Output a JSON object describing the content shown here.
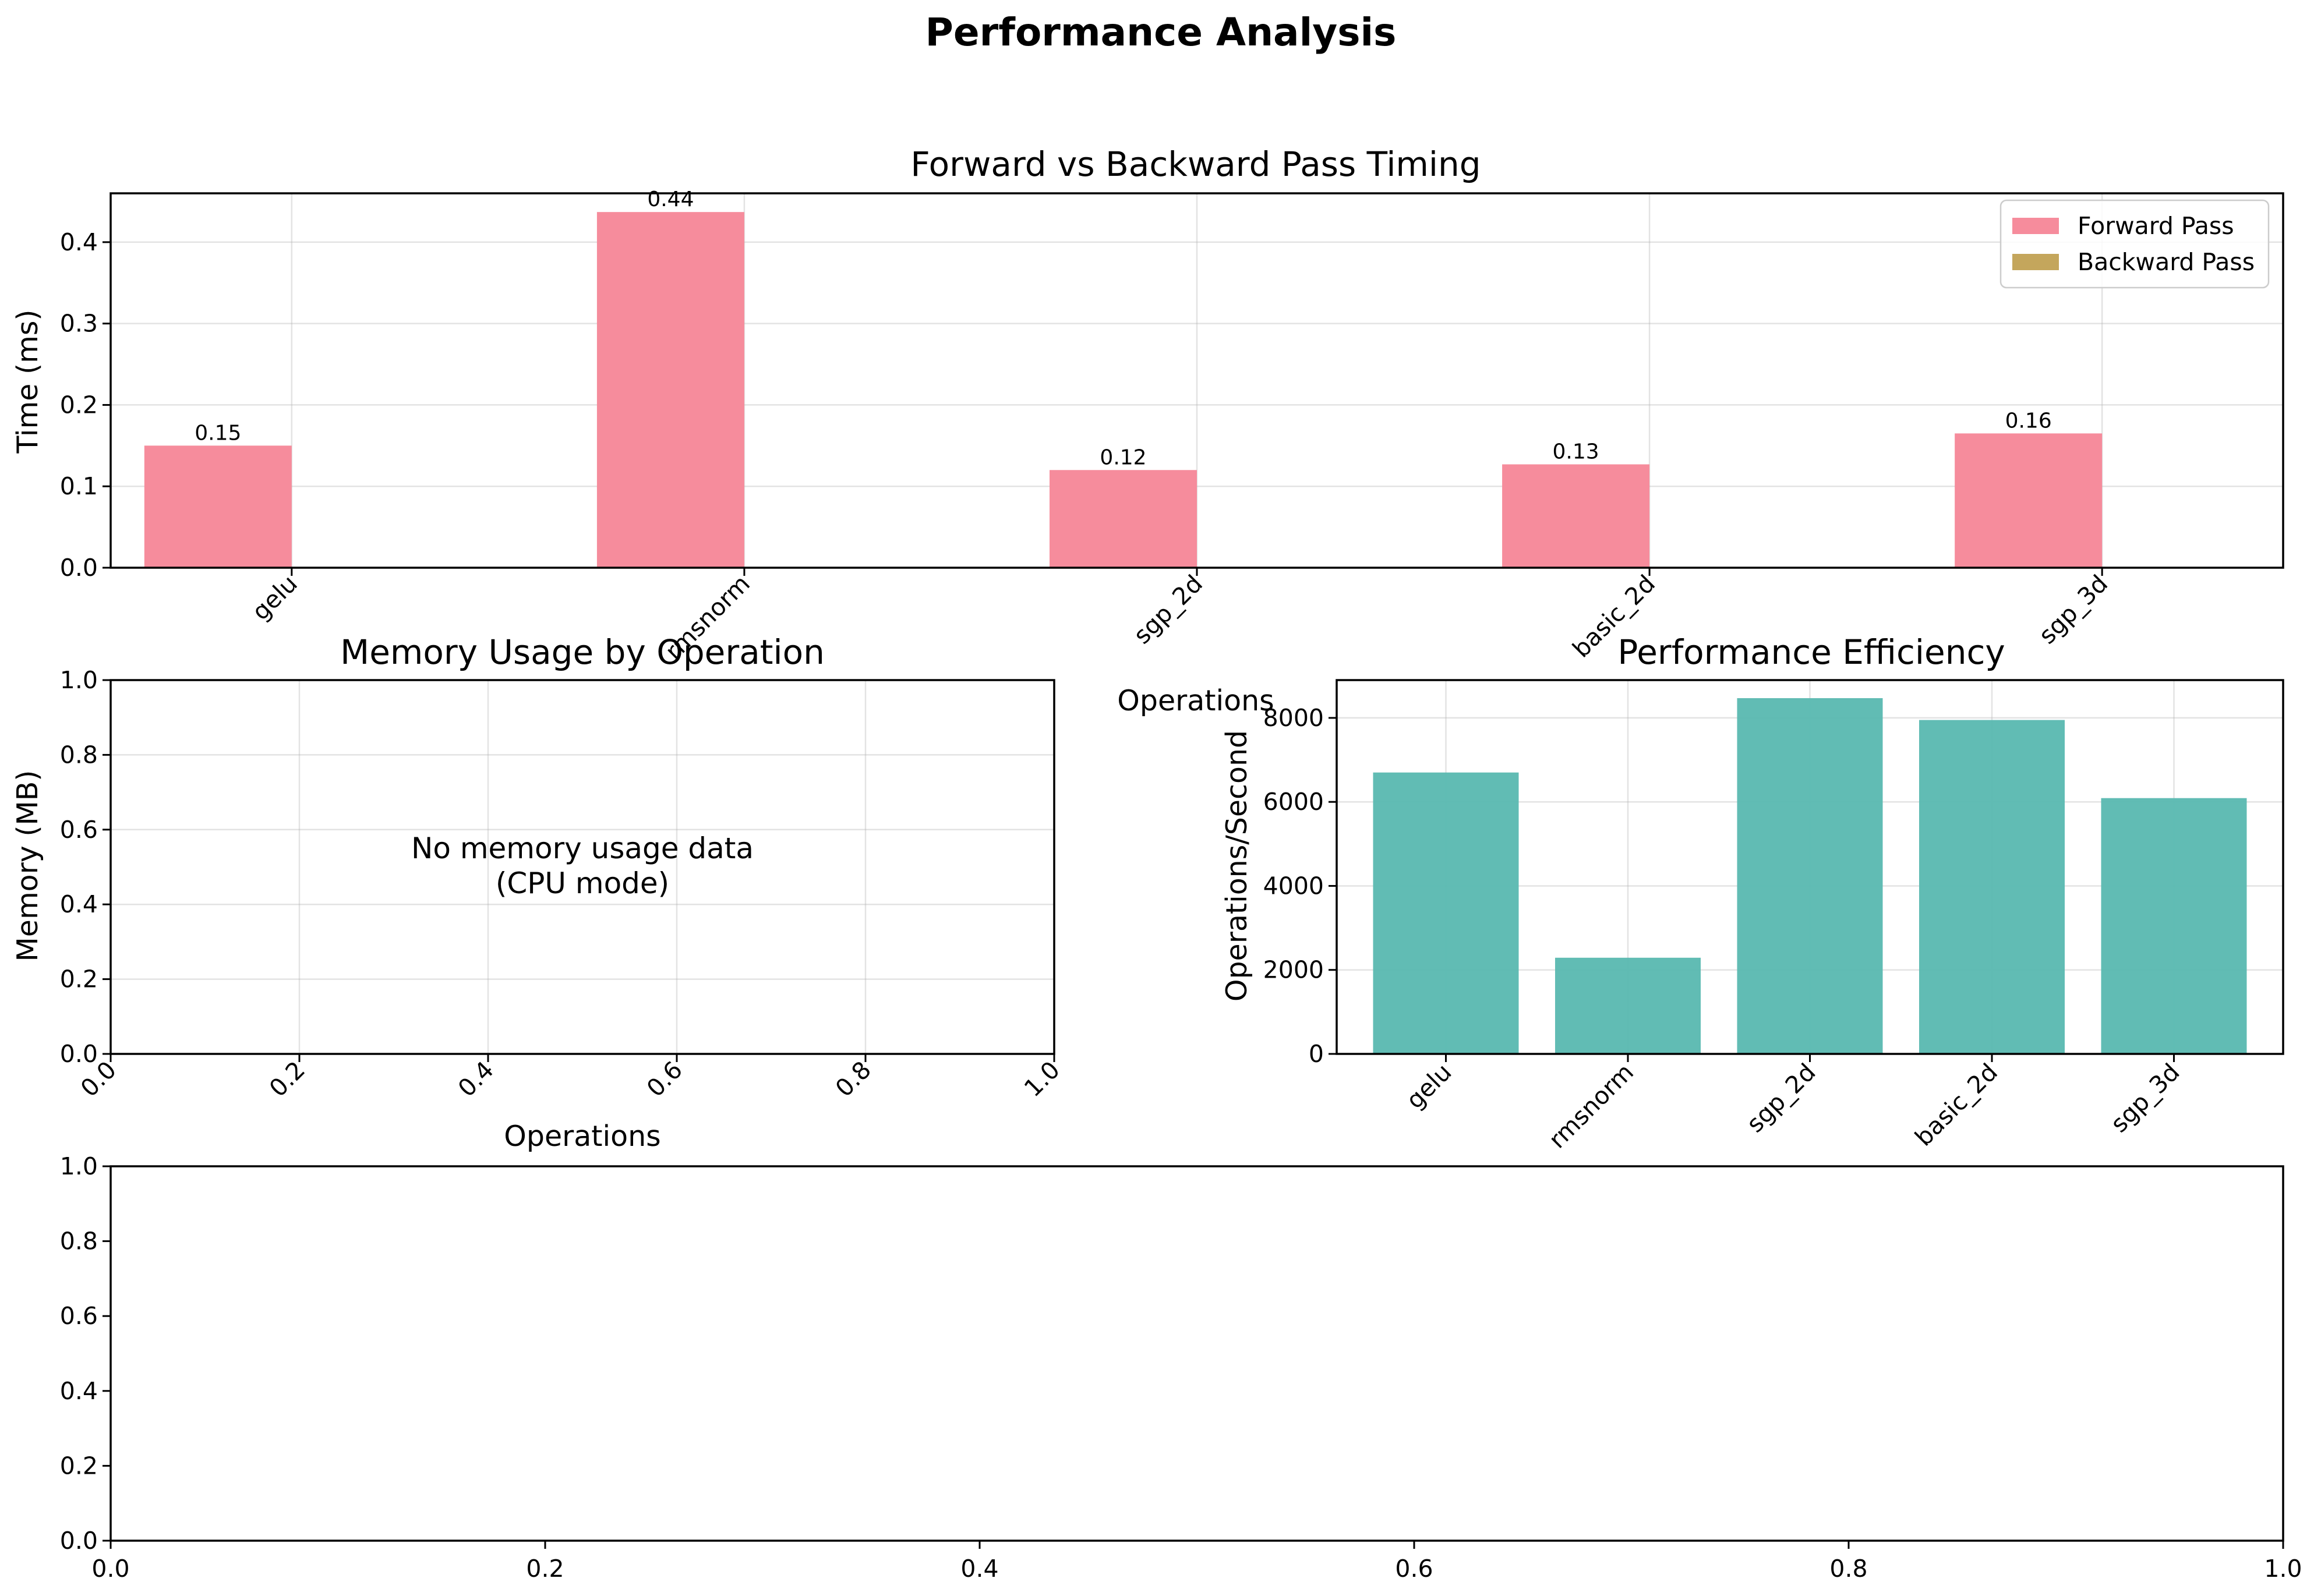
{
  "figure": {
    "title": "Performance Analysis"
  },
  "chart_data": [
    {
      "id": "timing",
      "type": "bar",
      "title": "Forward vs Backward Pass Timing",
      "xlabel": "Operations",
      "ylabel": "Time (ms)",
      "categories": [
        "gelu",
        "rmsnorm",
        "sgp_2d",
        "basic_2d",
        "sgp_3d"
      ],
      "series": [
        {
          "name": "Forward Pass",
          "values": [
            0.15,
            0.437,
            0.12,
            0.127,
            0.165
          ],
          "labels": [
            "0.15",
            "0.44",
            "0.12",
            "0.13",
            "0.16"
          ],
          "color": "#f68c9c"
        },
        {
          "name": "Backward Pass",
          "values": [
            0,
            0,
            0,
            0,
            0
          ],
          "color": "#c4a65c"
        }
      ],
      "ylim": [
        0,
        0.46
      ],
      "yticks": [
        "0.0",
        "0.1",
        "0.2",
        "0.3",
        "0.4"
      ],
      "grid": true,
      "legend": "top-right"
    },
    {
      "id": "memory",
      "type": "bar",
      "title": "Memory Usage by Operation",
      "xlabel": "Operations",
      "ylabel": "Memory (MB)",
      "message_lines": [
        "No memory usage data",
        "(CPU mode)"
      ],
      "xlim": [
        0,
        1
      ],
      "ylim": [
        0,
        1
      ],
      "xticks": [
        "0.0",
        "0.2",
        "0.4",
        "0.6",
        "0.8",
        "1.0"
      ],
      "yticks": [
        "0.0",
        "0.2",
        "0.4",
        "0.6",
        "0.8",
        "1.0"
      ],
      "grid": true
    },
    {
      "id": "efficiency",
      "type": "bar",
      "title": "Performance Efficiency",
      "xlabel": "",
      "ylabel": "Operations/Second",
      "categories": [
        "gelu",
        "rmsnorm",
        "sgp_2d",
        "basic_2d",
        "sgp_3d"
      ],
      "values": [
        6700,
        2290,
        8470,
        7950,
        6090
      ],
      "color": "#5cbab2",
      "ylim": [
        0,
        8900
      ],
      "yticks": [
        "0",
        "2000",
        "4000",
        "6000",
        "8000"
      ],
      "grid": true
    },
    {
      "id": "empty",
      "type": "bar",
      "xlim": [
        0,
        1
      ],
      "ylim": [
        0,
        1
      ],
      "xticks": [
        "0.0",
        "0.2",
        "0.4",
        "0.6",
        "0.8",
        "1.0"
      ],
      "yticks": [
        "0.0",
        "0.2",
        "0.4",
        "0.6",
        "0.8",
        "1.0"
      ],
      "grid": false
    }
  ]
}
